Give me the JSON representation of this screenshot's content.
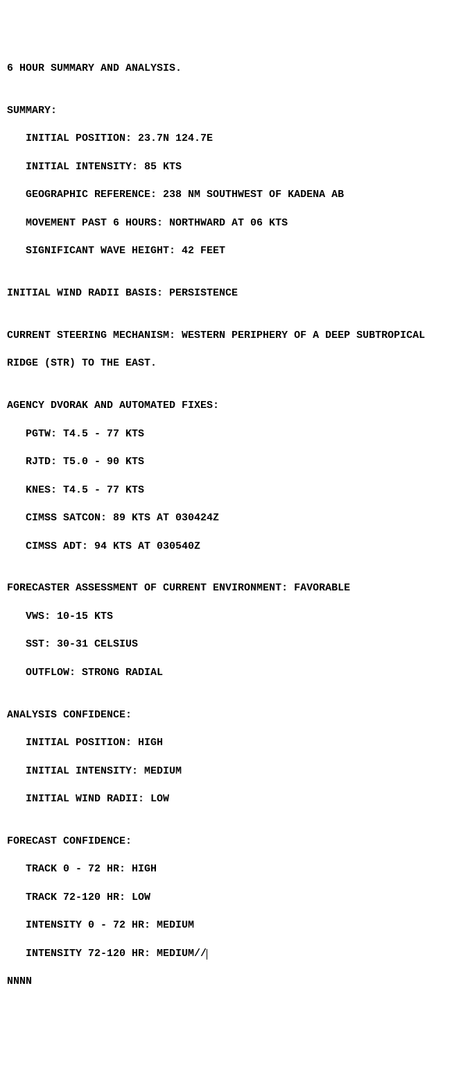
{
  "title": "6 HOUR SUMMARY AND ANALYSIS.",
  "summary": {
    "heading": "SUMMARY:",
    "initial_position": "   INITIAL POSITION: 23.7N 124.7E",
    "initial_intensity": "   INITIAL INTENSITY: 85 KTS",
    "geo_ref": "   GEOGRAPHIC REFERENCE: 238 NM SOUTHWEST OF KADENA AB",
    "movement": "   MOVEMENT PAST 6 HOURS: NORTHWARD AT 06 KTS",
    "wave_height": "   SIGNIFICANT WAVE HEIGHT: 42 FEET"
  },
  "wind_radii_basis": "INITIAL WIND RADII BASIS: PERSISTENCE",
  "steering_line1": "CURRENT STEERING MECHANISM: WESTERN PERIPHERY OF A DEEP SUBTROPICAL",
  "steering_line2": "RIDGE (STR) TO THE EAST.",
  "fixes": {
    "heading": "AGENCY DVORAK AND AUTOMATED FIXES:",
    "pgtw": "   PGTW: T4.5 - 77 KTS",
    "rjtd": "   RJTD: T5.0 - 90 KTS",
    "knes": "   KNES: T4.5 - 77 KTS",
    "cimss_satcon": "   CIMSS SATCON: 89 KTS AT 030424Z",
    "cimss_adt": "   CIMSS ADT: 94 KTS AT 030540Z"
  },
  "environment": {
    "heading": "FORECASTER ASSESSMENT OF CURRENT ENVIRONMENT: FAVORABLE",
    "vws": "   VWS: 10-15 KTS",
    "sst": "   SST: 30-31 CELSIUS",
    "outflow": "   OUTFLOW: STRONG RADIAL"
  },
  "analysis_conf": {
    "heading": "ANALYSIS CONFIDENCE:",
    "pos": "   INITIAL POSITION: HIGH",
    "intensity": "   INITIAL INTENSITY: MEDIUM",
    "wind_radii": "   INITIAL WIND RADII: LOW"
  },
  "forecast_conf": {
    "heading": "FORECAST CONFIDENCE:",
    "track_0_72": "   TRACK 0 - 72 HR: HIGH",
    "track_72_120": "   TRACK 72-120 HR: LOW",
    "int_0_72": "   INTENSITY 0 - 72 HR: MEDIUM",
    "int_72_120": "   INTENSITY 72-120 HR: MEDIUM//"
  },
  "terminator": "NNNN",
  "blank": ""
}
